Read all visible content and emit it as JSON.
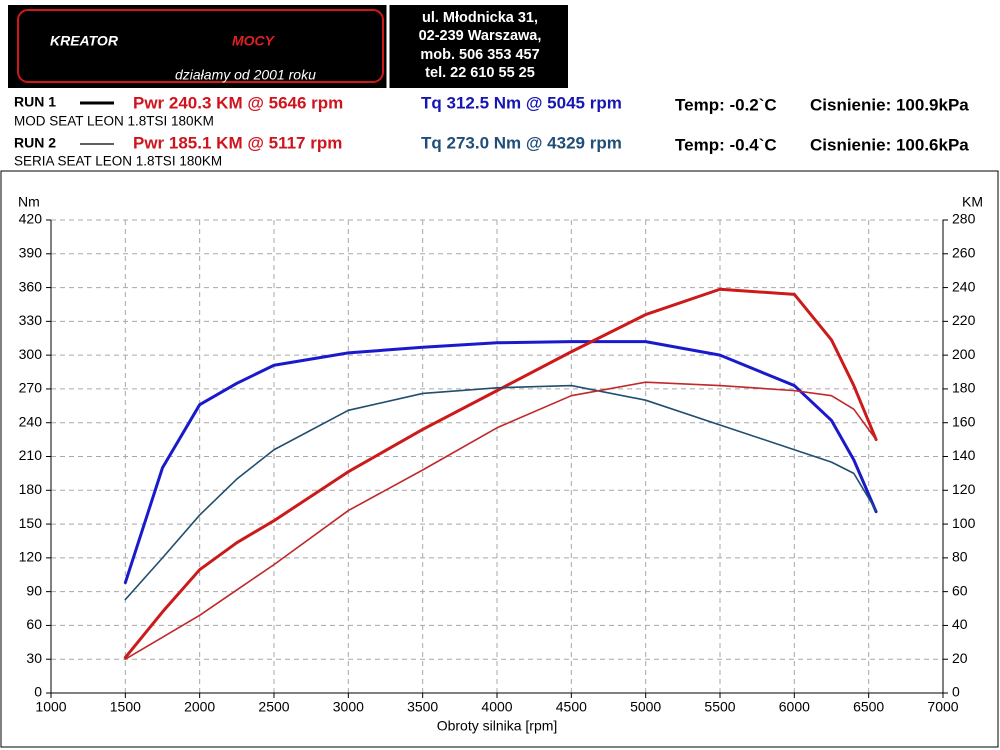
{
  "header": {
    "brand": "KREATOR",
    "brand_accent": "MOCY",
    "tagline": "działamy od 2001 roku",
    "address": [
      "ul. Młodnicka 31,",
      "02-239  Warszawa,",
      "mob.  506 353 457",
      "tel.  22 610 55 25"
    ],
    "runs": [
      {
        "label": "RUN 1",
        "power": "Pwr  240.3 KM @ 5646 rpm",
        "torque": "Tq 312.5 Nm @ 5045 rpm",
        "temp": "Temp: -0.2`C",
        "pressure": "Cisnienie: 100.9kPa",
        "description": "MOD SEAT LEON 1.8TSI 180KM"
      },
      {
        "label": "RUN 2",
        "power": "Pwr  185.1 KM @ 5117 rpm",
        "torque": "Tq 273.0 Nm @ 4329 rpm",
        "temp": "Temp: -0.4`C",
        "pressure": "Cisnienie: 100.6kPa",
        "description": "SERIA SEAT LEON 1.8TSI 180KM"
      }
    ]
  },
  "chart_data": {
    "type": "line",
    "y_label": "Nm",
    "y2_label": "KM",
    "x_label": "Obroty silnika [rpm]",
    "grid": true,
    "xlim": [
      1000,
      7000
    ],
    "xticks": [
      1000,
      1500,
      2000,
      2500,
      3000,
      3500,
      4000,
      4500,
      5000,
      5500,
      6000,
      6500,
      7000
    ],
    "ylim": [
      0,
      420
    ],
    "yticks": [
      0,
      30,
      60,
      90,
      120,
      150,
      180,
      210,
      240,
      270,
      300,
      330,
      360,
      390,
      420
    ],
    "y2lim": [
      0,
      280
    ],
    "y2ticks": [
      0,
      20,
      40,
      60,
      80,
      100,
      120,
      140,
      160,
      180,
      200,
      220,
      240,
      260,
      280
    ],
    "x": [
      1500,
      1750,
      2000,
      2250,
      2500,
      3000,
      3500,
      4000,
      4500,
      5000,
      5500,
      6000,
      6250,
      6400,
      6550
    ],
    "series": [
      {
        "color": "#1a1acc",
        "line_width": 3,
        "values": [
          98,
          200,
          256,
          275,
          291,
          302,
          307,
          311,
          312,
          312,
          300,
          273,
          242,
          207,
          161
        ]
      },
      {
        "color": "#cc1a1a",
        "line_width": 3,
        "axis": "y2",
        "values": [
          21,
          48,
          73,
          89,
          102,
          131,
          156,
          179,
          202,
          224,
          239,
          236,
          209,
          182,
          150
        ]
      },
      {
        "color": "#1f4e6e",
        "line_width": 1.6,
        "values": [
          83,
          120,
          158,
          190,
          216,
          251,
          266,
          271,
          273,
          260,
          238,
          216,
          205,
          195,
          162
        ]
      },
      {
        "color": "#c0282a",
        "line_width": 1.6,
        "axis": "y2",
        "values": [
          20,
          33,
          46,
          61,
          76,
          108,
          132,
          157,
          176,
          184,
          182,
          179,
          176,
          168,
          150
        ]
      }
    ]
  }
}
